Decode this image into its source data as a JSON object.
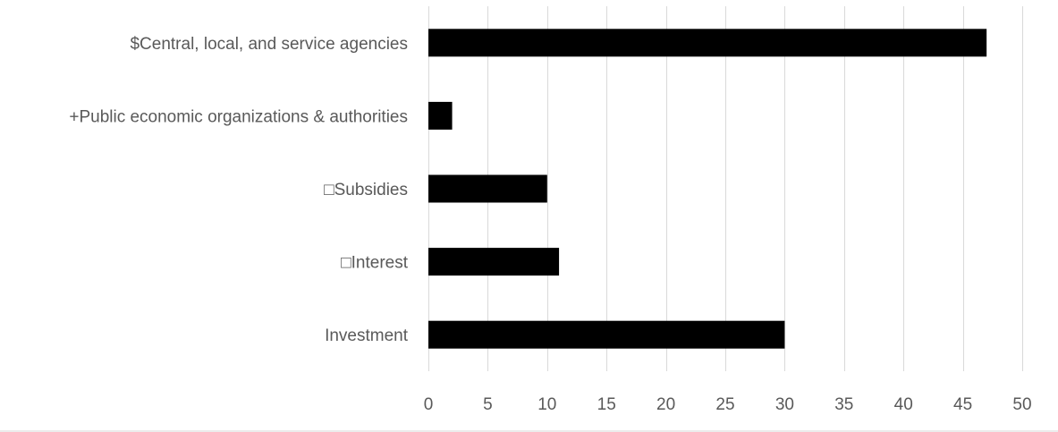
{
  "chart_data": {
    "type": "bar",
    "orientation": "horizontal",
    "categories": [
      "$Central, local, and service agencies",
      "+Public economic organizations & authorities",
      "□Subsidies",
      "□Interest",
      "Investment"
    ],
    "values": [
      47,
      2,
      10,
      11,
      30
    ],
    "xlim": [
      0,
      50
    ],
    "xticks": [
      "0",
      "5",
      "10",
      "15",
      "20",
      "25",
      "30",
      "35",
      "40",
      "45",
      "50"
    ],
    "title": "",
    "xlabel": "",
    "ylabel": "",
    "grid": "vertical",
    "legend": "none",
    "bar_color": "#000000"
  }
}
